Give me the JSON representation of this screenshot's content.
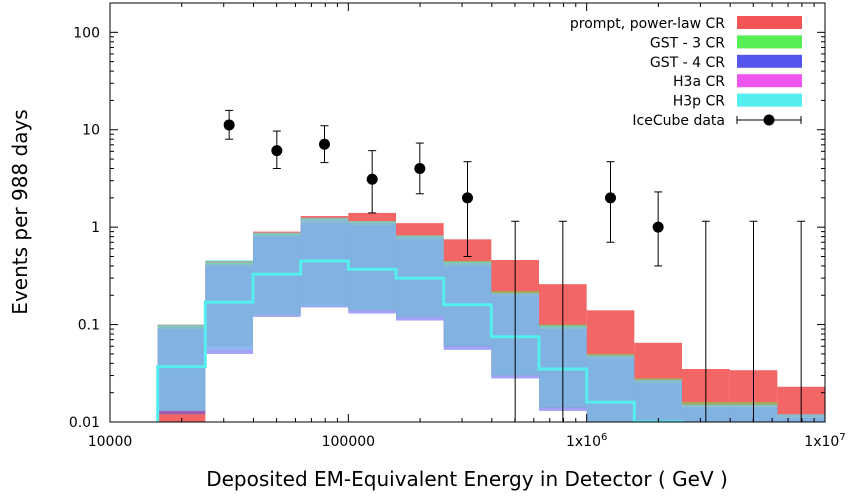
{
  "chart_data": {
    "type": "bar",
    "title": "",
    "xlabel": "Deposited EM-Equivalent Energy in Detector  ( GeV )",
    "ylabel": "Events  per  988  days",
    "x_scale": "log",
    "y_scale": "log",
    "xlim": [
      10000,
      10000000
    ],
    "ylim": [
      0.01,
      200
    ],
    "grid": false,
    "legend_position": "top-right",
    "x_tick_labels": [
      "10000",
      "100000",
      "1x10^6",
      "1x10^7"
    ],
    "y_tick_labels": [
      "0.01",
      "0.1",
      "1",
      "10",
      "100"
    ],
    "bin_edges": [
      15850,
      25120,
      39810,
      63100,
      100000,
      158500,
      251200,
      398100,
      631000,
      1000000,
      1585000,
      2512000,
      3981000,
      6310000,
      10000000
    ],
    "series": [
      {
        "name": "prompt, power-law CR",
        "color": "#f25555",
        "style": "band",
        "low": [
          0.01,
          0.06,
          0.13,
          0.16,
          0.14,
          0.12,
          0.06,
          0.03,
          0.014,
          0.007,
          0.004,
          0.002,
          0.002,
          0.002
        ],
        "high": [
          0.1,
          0.45,
          0.9,
          1.3,
          1.4,
          1.1,
          0.75,
          0.46,
          0.26,
          0.14,
          0.065,
          0.035,
          0.034,
          0.023
        ]
      },
      {
        "name": "GST - 3 CR",
        "color": "#55ee55",
        "style": "band",
        "low": [
          0.013,
          0.06,
          0.125,
          0.155,
          0.14,
          0.12,
          0.06,
          0.03,
          0.014,
          0.007,
          0.004,
          0.002,
          0.002,
          0.002
        ],
        "high": [
          0.097,
          0.43,
          0.86,
          1.22,
          1.15,
          0.82,
          0.45,
          0.22,
          0.1,
          0.05,
          0.028,
          0.016,
          0.016,
          0.012
        ]
      },
      {
        "name": "GST - 4 CR",
        "color": "#5555ee",
        "style": "band",
        "low": [
          0.012,
          0.05,
          0.12,
          0.15,
          0.13,
          0.11,
          0.055,
          0.028,
          0.013,
          0.007,
          0.003,
          0.002,
          0.002,
          0.002
        ],
        "high": [
          0.09,
          0.4,
          0.8,
          1.1,
          1.05,
          0.75,
          0.4,
          0.2,
          0.09,
          0.045,
          0.025,
          0.014,
          0.014,
          0.011
        ]
      },
      {
        "name": "H3a CR",
        "color": "#ee55ee",
        "style": "band",
        "low": [
          0.013,
          0.055,
          0.125,
          0.155,
          0.14,
          0.12,
          0.06,
          0.03,
          0.014,
          0.007,
          0.004,
          0.002,
          0.002,
          0.002
        ],
        "high": [
          0.095,
          0.42,
          0.84,
          1.2,
          1.12,
          0.8,
          0.43,
          0.21,
          0.095,
          0.048,
          0.027,
          0.015,
          0.015,
          0.012
        ]
      },
      {
        "name": "H3p CR",
        "color": "#55eeee",
        "style": "band",
        "center": [
          0.037,
          0.17,
          0.33,
          0.45,
          0.37,
          0.3,
          0.16,
          0.075,
          0.035,
          0.016,
          0.01,
          0.004,
          0.004,
          0.004
        ],
        "low": [
          0.013,
          0.055,
          0.125,
          0.155,
          0.14,
          0.12,
          0.06,
          0.03,
          0.014,
          0.007,
          0.004,
          0.002,
          0.002,
          0.002
        ],
        "high": [
          0.1,
          0.46,
          0.88,
          1.25,
          1.15,
          0.82,
          0.44,
          0.21,
          0.097,
          0.048,
          0.027,
          0.015,
          0.015,
          0.012
        ]
      },
      {
        "name": "IceCube data",
        "color": "#000000",
        "style": "points",
        "x": [
          31620,
          50120,
          79430,
          125900,
          199500,
          316200,
          501200,
          794300,
          1259000,
          1995000,
          3162000,
          5012000,
          7943000
        ],
        "y": [
          11.2,
          6.1,
          7.1,
          3.1,
          4.0,
          2.0,
          null,
          null,
          2.0,
          1.0,
          null,
          null,
          null
        ],
        "yerr_low": [
          8.0,
          4.0,
          4.6,
          1.4,
          2.2,
          0.5,
          0.01,
          0.01,
          0.7,
          0.4,
          0.01,
          0.01,
          0.01
        ],
        "yerr_high": [
          15.8,
          9.7,
          11.0,
          6.1,
          7.3,
          4.7,
          1.15,
          1.15,
          4.7,
          2.3,
          1.15,
          1.15,
          1.15
        ]
      }
    ]
  }
}
